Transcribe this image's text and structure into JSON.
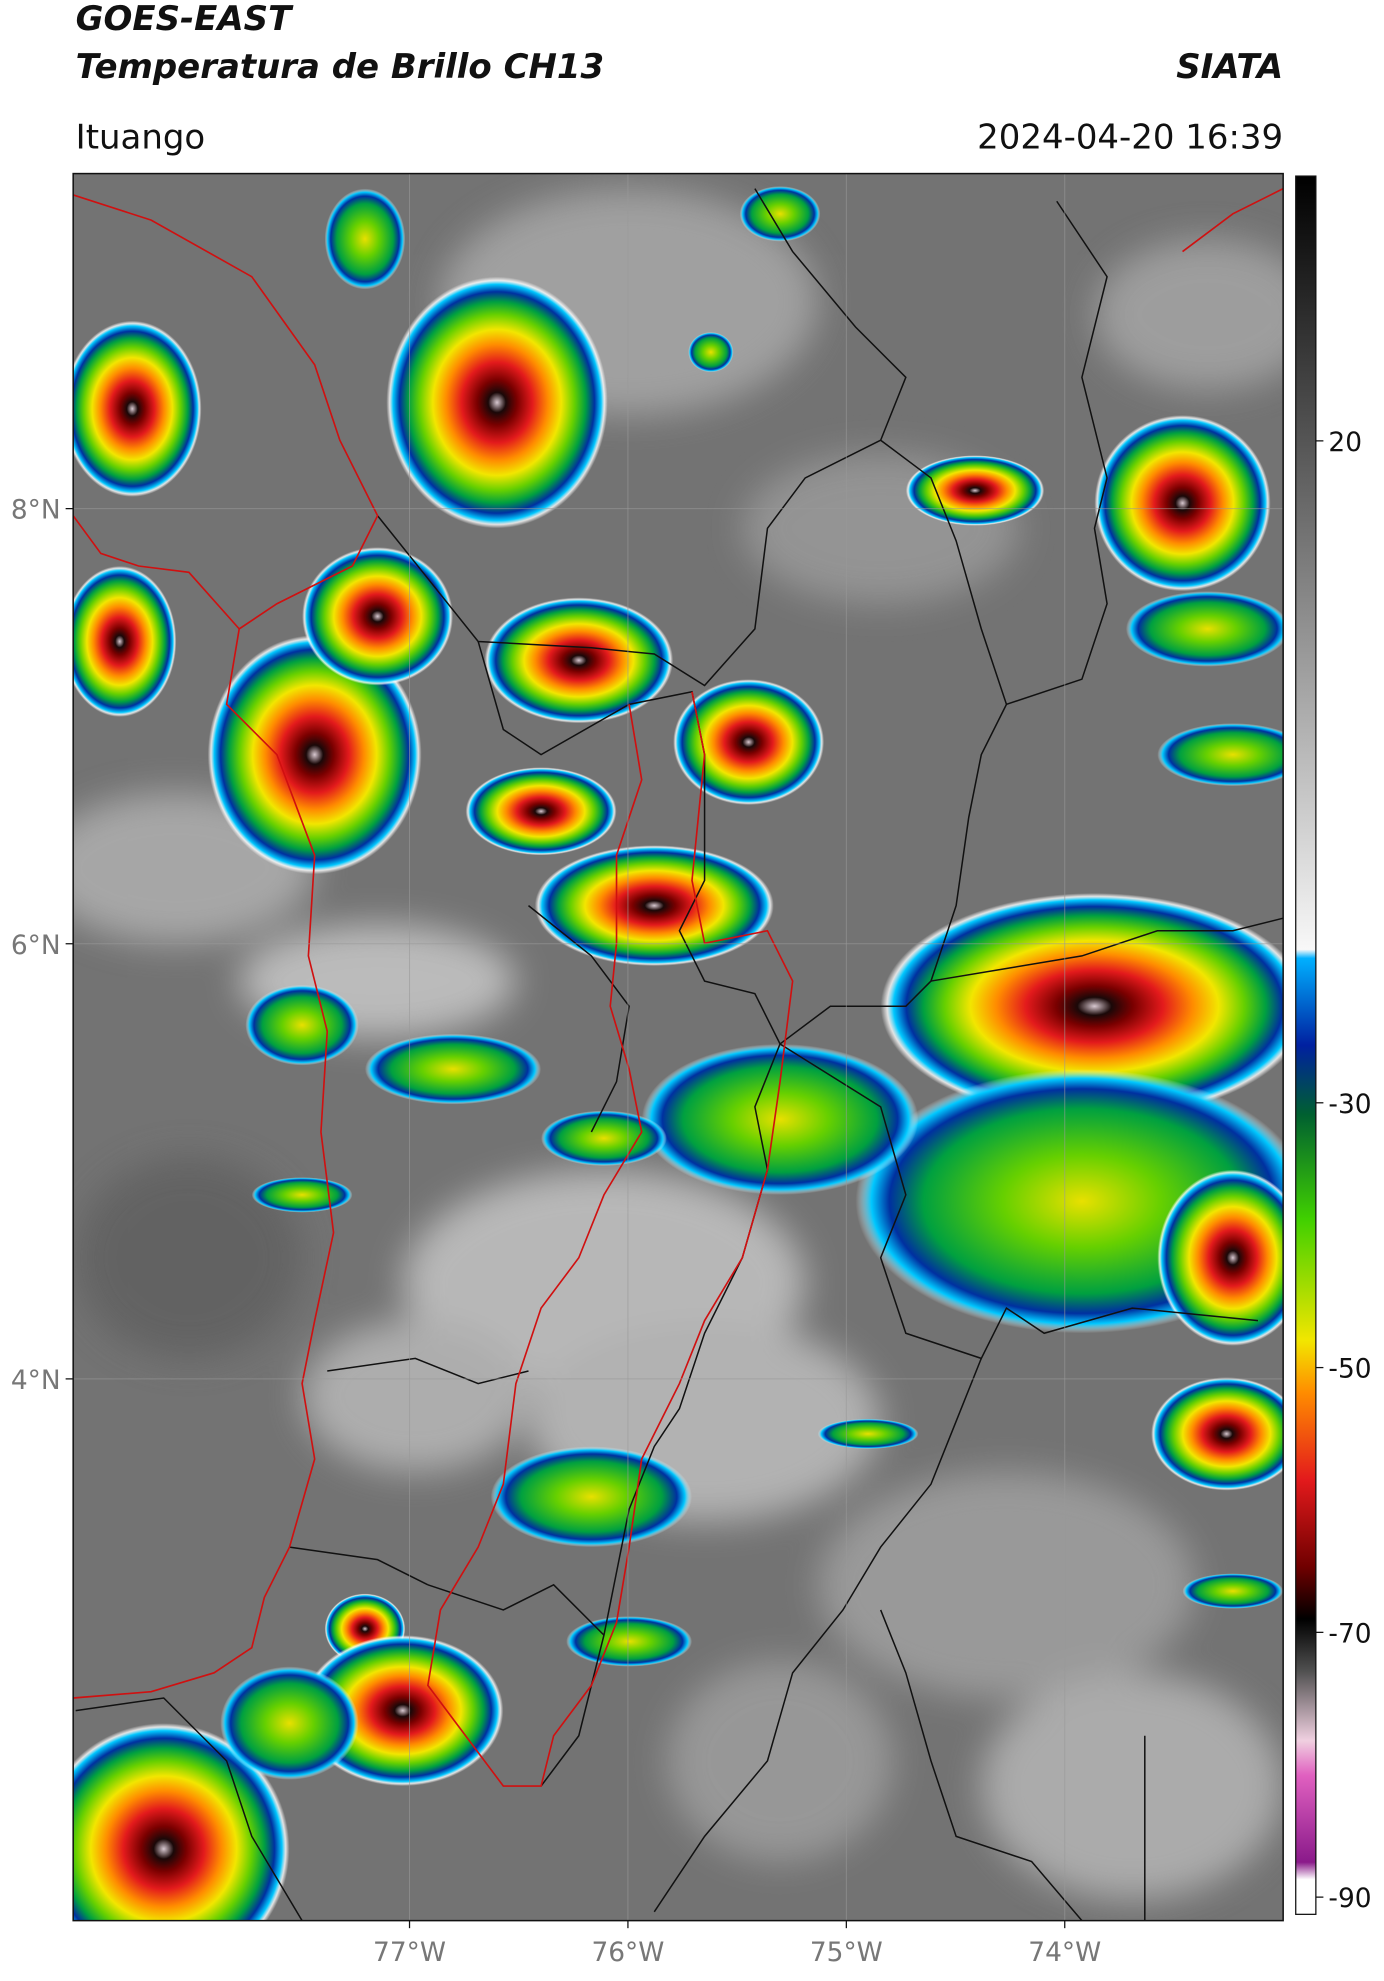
{
  "header": {
    "title_line1": "GOES-EAST",
    "title_line2": "Temperatura de Brillo CH13",
    "source": "SIATA",
    "location": "Ituango",
    "datetime": "2024-04-20 16:39"
  },
  "map": {
    "lon_lim": [
      -78.54,
      -73.0
    ],
    "lat_lim": [
      1.51,
      9.54
    ],
    "lon_ticks": [
      {
        "value": -77,
        "label": "77°W"
      },
      {
        "value": -76,
        "label": "76°W"
      },
      {
        "value": -75,
        "label": "75°W"
      },
      {
        "value": -74,
        "label": "74°W"
      }
    ],
    "lat_ticks": [
      {
        "value": 8,
        "label": "8°N"
      },
      {
        "value": 6,
        "label": "6°N"
      },
      {
        "value": 4,
        "label": "4°N"
      }
    ]
  },
  "colorbar": {
    "lim": [
      -91.3,
      40
    ],
    "ticks": [
      20,
      -30,
      -50,
      -70,
      -90
    ]
  }
}
